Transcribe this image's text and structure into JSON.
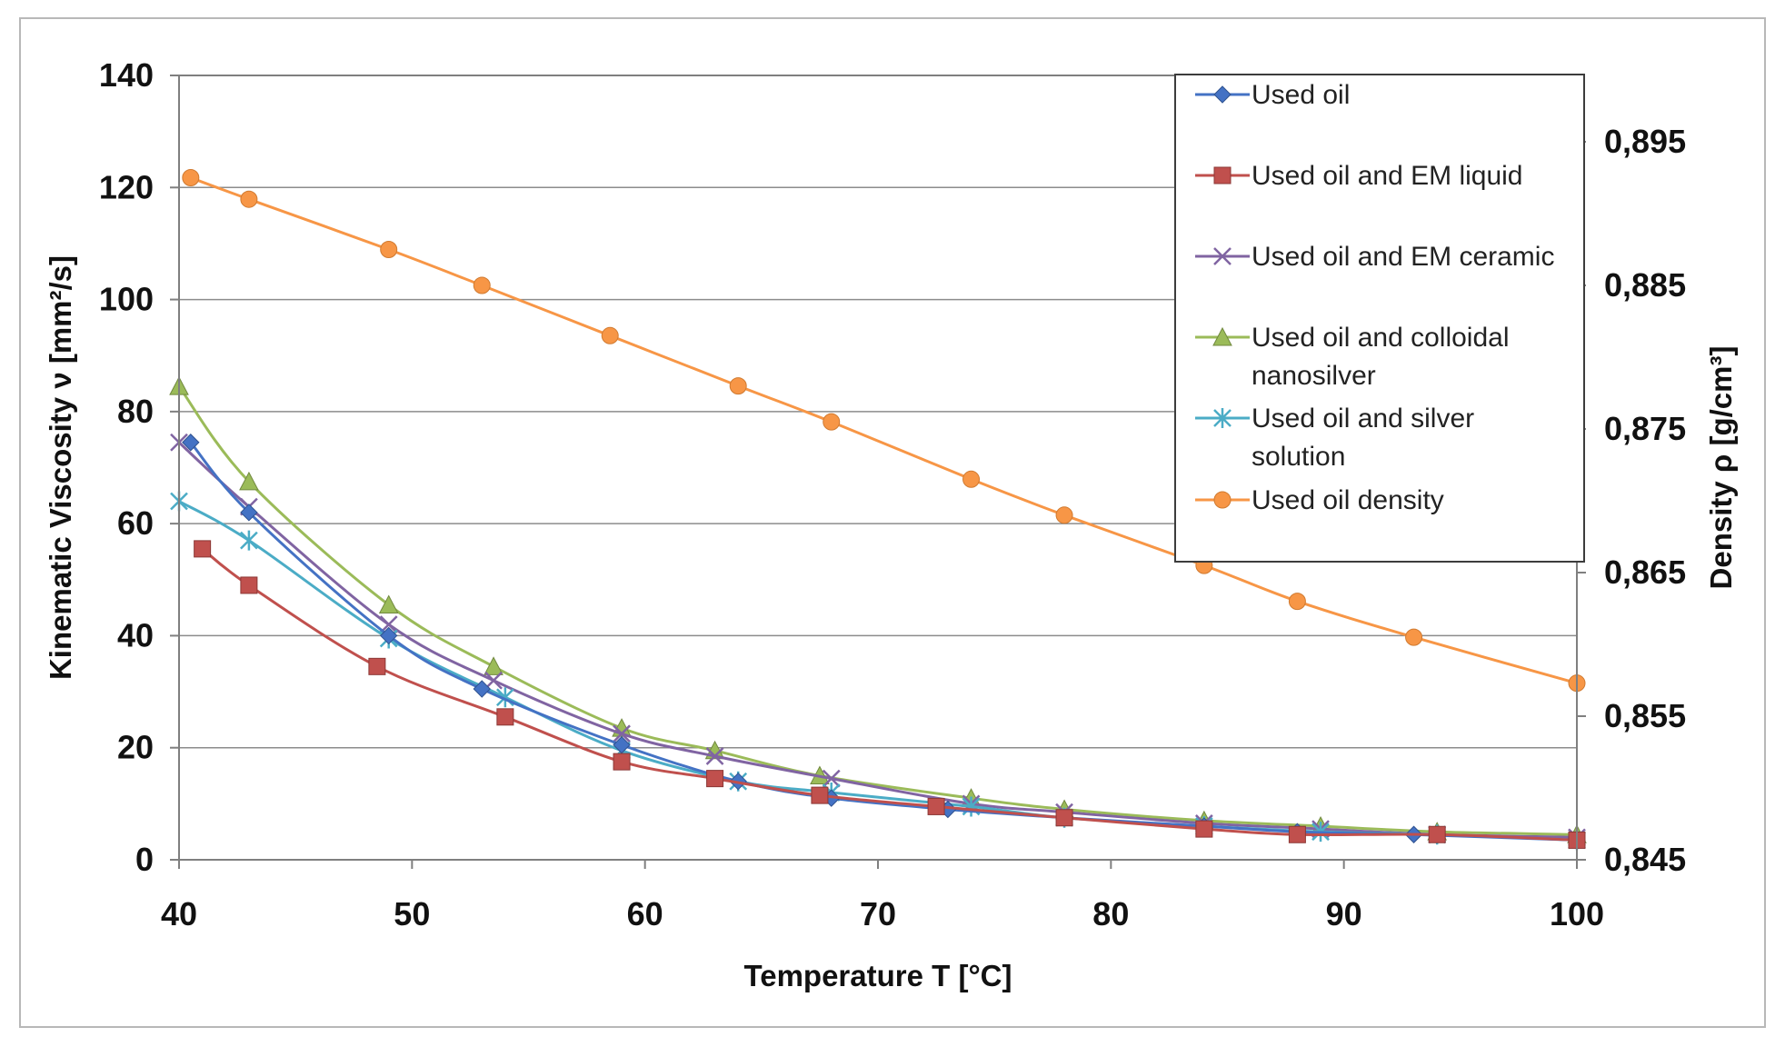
{
  "chart_data": {
    "type": "line",
    "xlabel": "Temperature T [°C]",
    "ylabel": "Kinematic Viscosity ν [mm²/s]",
    "y2label": "Density ρ [g/cm³]",
    "xlim": [
      40,
      100
    ],
    "ylim": [
      0,
      140
    ],
    "y2lim": [
      0.845,
      0.9
    ],
    "x_ticks": [
      40,
      50,
      60,
      70,
      80,
      90,
      100
    ],
    "y_ticks": [
      0,
      20,
      40,
      60,
      80,
      100,
      120,
      140
    ],
    "y2_ticks": [
      0.845,
      0.855,
      0.865,
      0.875,
      0.885,
      0.895
    ],
    "y2_tick_labels": [
      "0,845",
      "0,855",
      "0,865",
      "0,875",
      "0,885",
      "0,895"
    ],
    "grid": true,
    "legend_position": "top-right",
    "series": [
      {
        "name": "Used oil",
        "axis": "left",
        "color": "#4472c4",
        "marker": "diamond",
        "x": [
          40.5,
          43,
          49,
          53,
          59,
          64,
          68,
          73,
          78,
          84,
          88,
          93,
          100
        ],
        "y": [
          74.5,
          62,
          40,
          30.5,
          20.5,
          14,
          11,
          9,
          7.5,
          6,
          5,
          4.5,
          3.5
        ]
      },
      {
        "name": "Used oil and EM liquid",
        "axis": "left",
        "color": "#c0504d",
        "marker": "square",
        "x": [
          41,
          43,
          48.5,
          54,
          59,
          63,
          67.5,
          72.5,
          78,
          84,
          88,
          94,
          100
        ],
        "y": [
          55.5,
          49,
          34.5,
          25.5,
          17.5,
          14.5,
          11.5,
          9.5,
          7.5,
          5.5,
          4.5,
          4.5,
          3.5
        ]
      },
      {
        "name": "Used oil and EM ceramic",
        "axis": "left",
        "color": "#8064a2",
        "marker": "x",
        "x": [
          40,
          43,
          49,
          53.5,
          59,
          63,
          68,
          74,
          78,
          84,
          89,
          94,
          100
        ],
        "y": [
          74.5,
          63,
          42,
          32,
          22.5,
          18.5,
          14.5,
          10,
          8.5,
          6.5,
          5.5,
          4.5,
          4
        ]
      },
      {
        "name": "Used oil and colloidal nanosilver",
        "axis": "left",
        "color": "#9bbb59",
        "marker": "triangle",
        "x": [
          40,
          43,
          49,
          53.5,
          59,
          63,
          67.5,
          74,
          78,
          84,
          89,
          94,
          100
        ],
        "y": [
          84.5,
          67.5,
          45.5,
          34.5,
          23.5,
          19.5,
          15,
          11,
          9,
          7,
          6,
          5,
          4.5
        ]
      },
      {
        "name": "Used oil and silver solution",
        "axis": "left",
        "color": "#4bacc6",
        "marker": "star",
        "x": [
          40,
          43,
          49,
          54,
          59,
          64,
          68,
          74,
          78,
          84,
          89,
          94,
          100
        ],
        "y": [
          64,
          57,
          39.5,
          29,
          19.5,
          14,
          12,
          9.5,
          7.5,
          6,
          5,
          4.5,
          3.5
        ]
      },
      {
        "name": "Used oil density",
        "axis": "right",
        "color": "#f79646",
        "marker": "circle",
        "x": [
          40.5,
          43,
          49,
          53,
          58.5,
          64,
          68,
          74,
          78,
          84,
          88,
          93,
          100
        ],
        "y": [
          0.8925,
          0.891,
          0.8875,
          0.885,
          0.8815,
          0.878,
          0.8755,
          0.8715,
          0.869,
          0.8655,
          0.863,
          0.8605,
          0.8573
        ]
      }
    ]
  },
  "legend": {
    "items": [
      {
        "lines": [
          "Used oil"
        ]
      },
      {
        "lines": [
          "Used oil and EM liquid"
        ]
      },
      {
        "lines": [
          "Used oil and EM ceramic"
        ]
      },
      {
        "lines": [
          "Used oil and colloidal",
          "nanosilver"
        ]
      },
      {
        "lines": [
          "Used oil and silver",
          "solution"
        ]
      },
      {
        "lines": [
          "Used oil density"
        ]
      }
    ]
  }
}
